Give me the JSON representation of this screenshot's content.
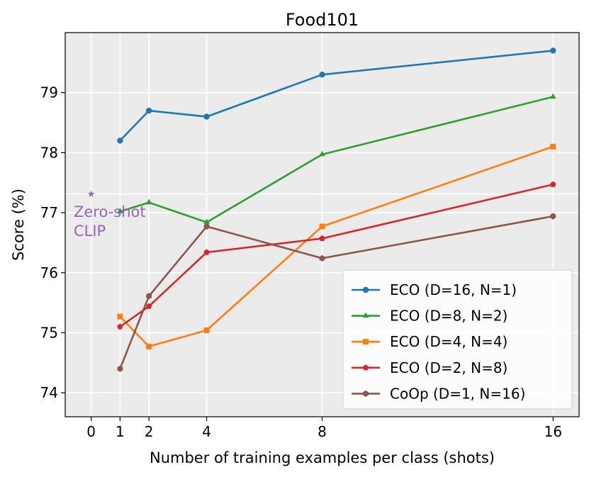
{
  "chart_data": {
    "type": "line",
    "title": "Food101",
    "xlabel": "Number of training examples per class (shots)",
    "ylabel": "Score (%)",
    "xlim": [
      -0.9,
      16.9
    ],
    "ylim": [
      73.6,
      80.0
    ],
    "x_ticks": [
      0,
      1,
      2,
      4,
      8,
      16
    ],
    "y_ticks": [
      74,
      75,
      76,
      77,
      78,
      79
    ],
    "grid": true,
    "legend_position": "lower-right",
    "series": [
      {
        "name": "ECO (D=16, N=1)",
        "color": "#1f77b4",
        "marker": "circle",
        "x": [
          1,
          2,
          4,
          8,
          16
        ],
        "y": [
          78.2,
          78.7,
          78.6,
          79.3,
          79.7
        ]
      },
      {
        "name": "ECO (D=8, N=2)",
        "color": "#2ca02c",
        "marker": "triangle",
        "x": [
          1,
          2,
          4,
          8,
          16
        ],
        "y": [
          77.02,
          77.17,
          76.84,
          77.97,
          78.93
        ]
      },
      {
        "name": "ECO (D=4, N=4)",
        "color": "#ff7f0e",
        "marker": "square",
        "x": [
          1,
          2,
          4,
          8,
          16
        ],
        "y": [
          75.27,
          74.77,
          75.04,
          76.77,
          78.1
        ]
      },
      {
        "name": "ECO (D=2, N=8)",
        "color": "#d62728",
        "marker": "pentagon",
        "x": [
          1,
          2,
          4,
          8,
          16
        ],
        "y": [
          75.1,
          75.44,
          76.34,
          76.57,
          77.47
        ]
      },
      {
        "name": "CoOp (D=1, N=16)",
        "color": "#8c564b",
        "marker": "hexagon",
        "x": [
          1,
          2,
          4,
          8,
          16
        ],
        "y": [
          74.4,
          75.61,
          76.77,
          76.24,
          76.94
        ]
      }
    ],
    "reference": {
      "label_line1": "Zero-shot",
      "label_line2": "CLIP",
      "x": 0,
      "y": 77.31,
      "color": "#9467bd",
      "marker": "star",
      "hline": true
    }
  }
}
